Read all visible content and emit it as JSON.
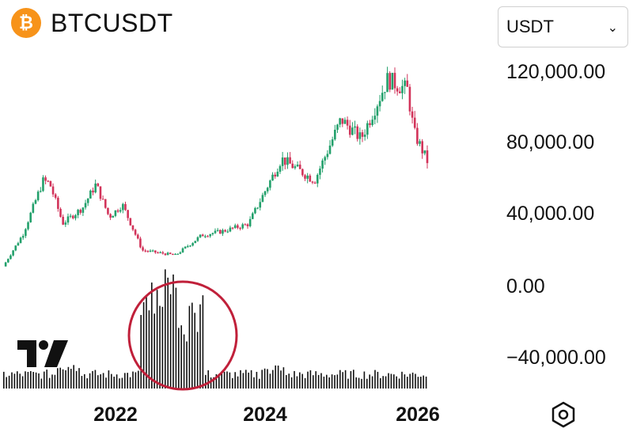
{
  "header": {
    "coin_icon": "bitcoin-icon",
    "coin_glyph": "₿",
    "symbol": "BTCUSDT"
  },
  "currency_select": {
    "value": "USDT",
    "icon": "chevron-down-icon"
  },
  "y_axis": {
    "labels": [
      "120,000.00",
      "80,000.00",
      "40,000.00",
      "0.00",
      "−40,000.00"
    ]
  },
  "x_axis": {
    "labels": [
      "2022",
      "2024",
      "2026"
    ]
  },
  "logo": "tradingview-logo",
  "settings_icon": "settings-hexagon-icon",
  "annotation": {
    "shape": "circle",
    "color": "#C0203A",
    "target": "volume-spike"
  },
  "colors": {
    "up": "#22A06B",
    "down": "#D2335A",
    "volume": "#111111"
  },
  "chart_data": {
    "type": "candlestick",
    "title": "BTCUSDT",
    "ylim": [
      -40000,
      130000
    ],
    "x_ticks": [
      "2022",
      "2024",
      "2026"
    ],
    "grid": false,
    "approx_close_by_month": [
      {
        "x": "2020-09",
        "close": 10800
      },
      {
        "x": "2020-12",
        "close": 29000
      },
      {
        "x": "2021-03",
        "close": 58800
      },
      {
        "x": "2021-04",
        "close": 57700
      },
      {
        "x": "2021-06",
        "close": 35000
      },
      {
        "x": "2021-09",
        "close": 43800
      },
      {
        "x": "2021-11",
        "close": 57000
      },
      {
        "x": "2022-01",
        "close": 38500
      },
      {
        "x": "2022-03",
        "close": 45500
      },
      {
        "x": "2022-06",
        "close": 19800
      },
      {
        "x": "2022-11",
        "close": 17100
      },
      {
        "x": "2023-03",
        "close": 28400
      },
      {
        "x": "2023-06",
        "close": 30500
      },
      {
        "x": "2023-10",
        "close": 34600
      },
      {
        "x": "2024-03",
        "close": 71300
      },
      {
        "x": "2024-08",
        "close": 59000
      },
      {
        "x": "2024-12",
        "close": 93400
      },
      {
        "x": "2025-03",
        "close": 82500
      },
      {
        "x": "2025-07",
        "close": 115800
      },
      {
        "x": "2025-10",
        "close": 110000
      },
      {
        "x": "2025-11",
        "close": 86000
      },
      {
        "x": "2026-01",
        "close": 70000
      }
    ]
  }
}
